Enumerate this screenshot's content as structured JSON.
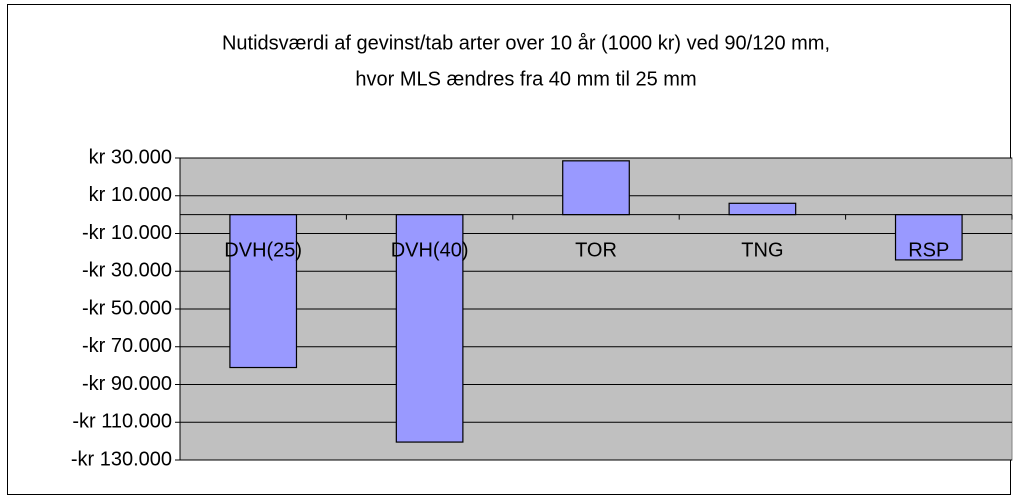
{
  "chart_data": {
    "type": "bar",
    "title": [
      "Nutidsværdi af gevinst/tab arter over 10 år (1000 kr) ved 90/120 mm,",
      "hvor MLS ændres fra 40 mm til 25 mm"
    ],
    "categories": [
      "DVH(25)",
      "DVH(40)",
      "TOR",
      "TNG",
      "RSP"
    ],
    "values": [
      -81000,
      -120500,
      28500,
      6000,
      -24000
    ],
    "color": "#9999ff",
    "ylim": [
      -130000,
      30000
    ],
    "yticks": [
      {
        "value": 30000,
        "label": "kr 30.000"
      },
      {
        "value": 10000,
        "label": "kr 10.000"
      },
      {
        "value": -10000,
        "label": "-kr 10.000"
      },
      {
        "value": -30000,
        "label": "-kr 30.000"
      },
      {
        "value": -50000,
        "label": "-kr 50.000"
      },
      {
        "value": -70000,
        "label": "-kr 70.000"
      },
      {
        "value": -90000,
        "label": "-kr 90.000"
      },
      {
        "value": -110000,
        "label": "-kr 110.000"
      },
      {
        "value": -130000,
        "label": "-kr 130.000"
      }
    ],
    "grid": true
  }
}
